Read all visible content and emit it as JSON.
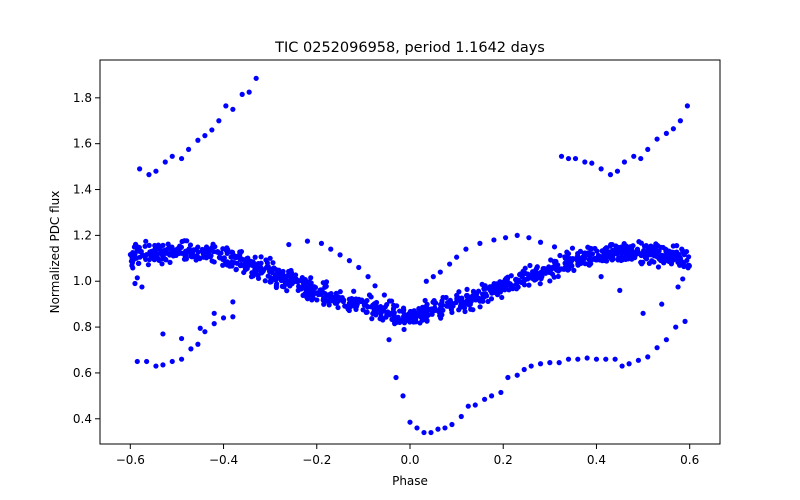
{
  "chart_data": {
    "type": "scatter",
    "title": "TIC 0252096958, period 1.1642 days",
    "xlabel": "Phase",
    "ylabel": "Normalized PDC flux",
    "xlim": [
      -0.665,
      0.665
    ],
    "ylim": [
      0.29,
      1.965
    ],
    "xticks": [
      -0.6,
      -0.4,
      -0.2,
      0.0,
      0.2,
      0.4,
      0.6
    ],
    "xtick_labels": [
      "−0.6",
      "−0.4",
      "−0.2",
      "0.0",
      "0.2",
      "0.4",
      "0.6"
    ],
    "yticks": [
      0.4,
      0.6,
      0.8,
      1.0,
      1.2,
      1.4,
      1.6,
      1.8
    ],
    "ytick_labels": [
      "0.4",
      "0.6",
      "0.8",
      "1.0",
      "1.2",
      "1.4",
      "1.6",
      "1.8"
    ],
    "grid": false,
    "marker_color": "#0000ff",
    "main_band": {
      "phase_range": [
        -0.6,
        0.6
      ],
      "model": "1.0 + 0.13*sin(2*pi*(phase + 0.5)/0.9714) - 0.03*gaussian(phase, 0.04)",
      "points_per_unit_phase": 900,
      "scatter": 0.045
    },
    "upper_points": {
      "x": [
        -0.58,
        -0.56,
        -0.545,
        -0.525,
        -0.51,
        -0.49,
        -0.475,
        -0.455,
        -0.44,
        -0.425,
        -0.41,
        -0.395,
        -0.38,
        -0.36,
        -0.345,
        -0.33,
        0.325,
        0.34,
        0.355,
        0.375,
        0.39,
        0.41,
        0.43,
        0.445,
        0.46,
        0.48,
        0.495,
        0.51,
        0.53,
        0.55,
        0.565,
        0.58,
        0.595
      ],
      "y": [
        1.49,
        1.465,
        1.48,
        1.52,
        1.545,
        1.535,
        1.575,
        1.615,
        1.635,
        1.66,
        1.7,
        1.765,
        1.75,
        1.815,
        1.825,
        1.885,
        1.545,
        1.535,
        1.535,
        1.52,
        1.515,
        1.49,
        1.465,
        1.48,
        1.52,
        1.545,
        1.535,
        1.575,
        1.62,
        1.645,
        1.665,
        1.7,
        1.765
      ]
    },
    "lower_points": {
      "x": [
        -0.585,
        -0.565,
        -0.545,
        -0.53,
        -0.51,
        -0.49,
        -0.47,
        -0.455,
        -0.44,
        -0.42,
        -0.4,
        -0.38,
        -0.045,
        -0.03,
        -0.015,
        0.0,
        0.015,
        0.03,
        0.045,
        0.06,
        0.075,
        0.09,
        0.11,
        0.125,
        0.14,
        0.16,
        0.175,
        0.195,
        0.21,
        0.23,
        0.245,
        0.26,
        0.28,
        0.3,
        0.32,
        0.34,
        0.36,
        0.38,
        0.4,
        0.42,
        0.44,
        0.455,
        0.47,
        0.49,
        0.51,
        0.53,
        0.55,
        0.57,
        0.59
      ],
      "y": [
        0.65,
        0.65,
        0.63,
        0.635,
        0.65,
        0.66,
        0.705,
        0.725,
        0.78,
        0.815,
        0.84,
        0.845,
        0.745,
        0.58,
        0.5,
        0.385,
        0.36,
        0.34,
        0.34,
        0.355,
        0.36,
        0.375,
        0.41,
        0.455,
        0.46,
        0.485,
        0.5,
        0.515,
        0.58,
        0.59,
        0.615,
        0.63,
        0.64,
        0.645,
        0.645,
        0.66,
        0.66,
        0.665,
        0.66,
        0.66,
        0.66,
        0.63,
        0.64,
        0.655,
        0.67,
        0.71,
        0.745,
        0.8,
        0.825
      ]
    },
    "off_band_points": {
      "x": [
        -0.59,
        -0.585,
        -0.575,
        -0.53,
        -0.49,
        -0.45,
        -0.42,
        -0.38,
        -0.34,
        -0.3,
        -0.26,
        -0.22,
        -0.19,
        -0.17,
        -0.15,
        -0.13,
        -0.11,
        -0.09,
        -0.075,
        -0.055,
        -0.035,
        0.035,
        0.05,
        0.065,
        0.085,
        0.1,
        0.12,
        0.15,
        0.18,
        0.205,
        0.23,
        0.255,
        0.28,
        0.31,
        0.34,
        0.37,
        0.41,
        0.45,
        0.5,
        0.54,
        0.575,
        0.585
      ],
      "y": [
        0.99,
        1.015,
        0.975,
        0.77,
        0.75,
        0.795,
        0.86,
        0.91,
        1.02,
        1.1,
        1.16,
        1.175,
        1.165,
        1.14,
        1.115,
        1.09,
        1.06,
        1.02,
        0.98,
        0.94,
        0.895,
        1.0,
        1.02,
        1.04,
        1.075,
        1.105,
        1.14,
        1.165,
        1.18,
        1.19,
        1.2,
        1.19,
        1.17,
        1.15,
        1.12,
        1.08,
        1.02,
        0.96,
        0.86,
        0.9,
        0.975,
        1.01
      ]
    }
  }
}
